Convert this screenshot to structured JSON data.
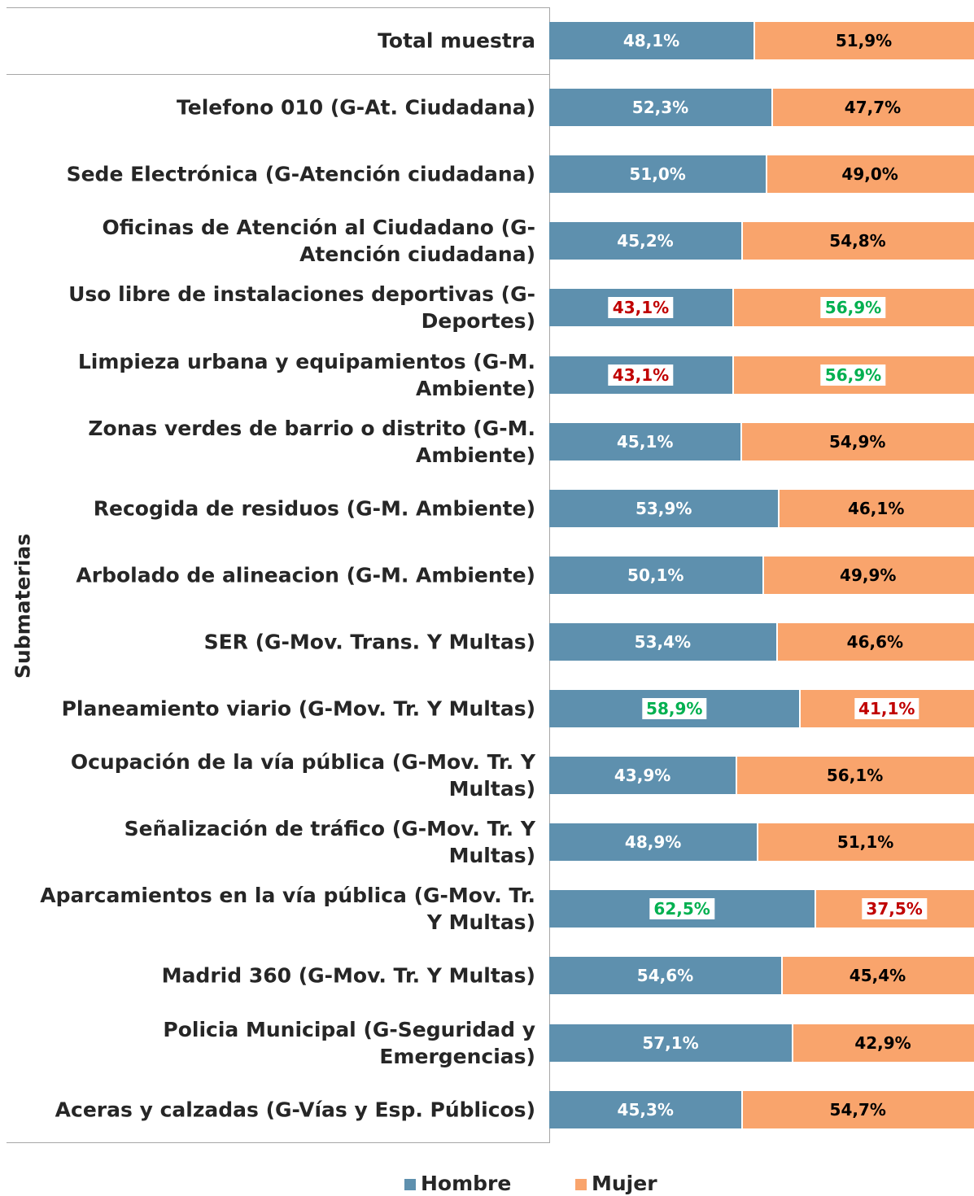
{
  "chart_data": {
    "type": "stacked_bar_100",
    "orientation": "horizontal",
    "y_axis_label": "Submaterias",
    "categories": [
      "Total muestra",
      "Telefono 010 (G-At. Ciudadana)",
      "Sede Electrónica (G-Atención ciudadana)",
      "Oficinas de Atención al Ciudadano (G-Atención ciudadana)",
      "Uso libre de instalaciones deportivas (G-Deportes)",
      "Limpieza urbana y equipamientos (G-M. Ambiente)",
      "Zonas verdes de barrio o distrito (G-M. Ambiente)",
      "Recogida de residuos (G-M. Ambiente)",
      "Arbolado de alineacion (G-M. Ambiente)",
      "SER (G-Mov. Trans. Y Multas)",
      "Planeamiento viario (G-Mov. Tr. Y Multas)",
      "Ocupación de la vía pública (G-Mov. Tr. Y Multas)",
      "Señalización de tráfico (G-Mov. Tr. Y Multas)",
      "Aparcamientos en la vía pública (G-Mov. Tr. Y Multas)",
      "Madrid 360 (G-Mov. Tr. Y Multas)",
      "Policia Municipal (G-Seguridad y Emergencias)",
      "Aceras y calzadas (G-Vías y Esp. Públicos)"
    ],
    "xlim": [
      0,
      100
    ],
    "series": [
      {
        "name": "Hombre",
        "color": "#5e90ae",
        "values": [
          48.1,
          52.3,
          51.0,
          45.2,
          43.1,
          43.1,
          45.1,
          53.9,
          50.1,
          53.4,
          58.9,
          43.9,
          48.9,
          62.5,
          54.6,
          57.1,
          45.3
        ],
        "value_labels": [
          "48,1%",
          "52,3%",
          "51,0%",
          "45,2%",
          "43,1%",
          "43,1%",
          "45,1%",
          "53,9%",
          "50,1%",
          "53,4%",
          "58,9%",
          "43,9%",
          "48,9%",
          "62,5%",
          "54,6%",
          "57,1%",
          "45,3%"
        ],
        "label_colors": [
          "#ffffff",
          "#ffffff",
          "#ffffff",
          "#ffffff",
          "#c00000",
          "#c00000",
          "#ffffff",
          "#ffffff",
          "#ffffff",
          "#ffffff",
          "#00b050",
          "#ffffff",
          "#ffffff",
          "#00b050",
          "#ffffff",
          "#ffffff",
          "#ffffff"
        ]
      },
      {
        "name": "Mujer",
        "color": "#f9a46c",
        "values": [
          51.9,
          47.7,
          49.0,
          54.8,
          56.9,
          56.9,
          54.9,
          46.1,
          49.9,
          46.6,
          41.1,
          56.1,
          51.1,
          37.5,
          45.4,
          42.9,
          54.7
        ],
        "value_labels": [
          "51,9%",
          "47,7%",
          "49,0%",
          "54,8%",
          "56,9%",
          "56,9%",
          "54,9%",
          "46,1%",
          "49,9%",
          "46,6%",
          "41,1%",
          "56,1%",
          "51,1%",
          "37,5%",
          "45,4%",
          "42,9%",
          "54,7%"
        ],
        "label_colors": [
          "#000000",
          "#000000",
          "#000000",
          "#000000",
          "#00b050",
          "#00b050",
          "#000000",
          "#000000",
          "#000000",
          "#000000",
          "#c00000",
          "#000000",
          "#000000",
          "#c00000",
          "#000000",
          "#000000",
          "#000000"
        ]
      }
    ],
    "legend": "bottom"
  }
}
